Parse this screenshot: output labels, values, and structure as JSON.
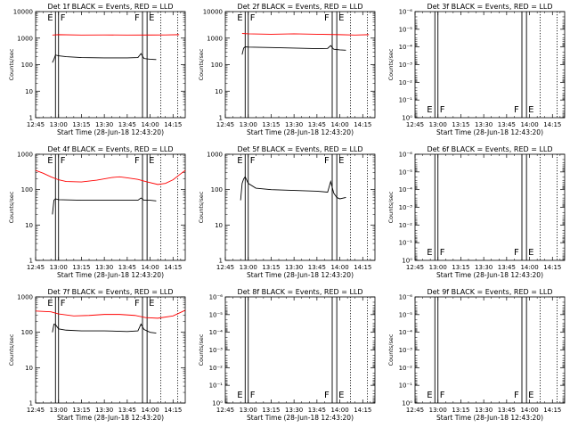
{
  "chart_data": {
    "type": "line",
    "x_tick_labels": [
      "12:45",
      "13:00",
      "13:15",
      "13:30",
      "13:45",
      "14:00",
      "14:15"
    ],
    "x_range": [
      "12:45",
      "14:23"
    ],
    "xlabel": "Start Time (28-Jun-18 12:43:20)",
    "ylabel": "Counts/sec",
    "y_scale": "log",
    "colors": {
      "events": "#000000",
      "lld": "#ff0000",
      "axes": "#000000"
    },
    "solid_markers": [
      "12:58",
      "13:00",
      "13:55",
      "13:58"
    ],
    "dotted_markers": [
      "14:07",
      "14:18"
    ],
    "marker_labels": [
      "E",
      "F",
      "F",
      "E"
    ],
    "panels": [
      {
        "title": "Det 1f BLACK = Events, RED = LLD",
        "ylim": [
          1,
          10000
        ],
        "y_tick_labels": [
          "1",
          "10",
          "100",
          "1000",
          "10000"
        ],
        "series": [
          {
            "name": "Events",
            "color": "#000000",
            "points": [
              [
                "12:56",
                120
              ],
              [
                "12:57",
                160
              ],
              [
                "12:58",
                230
              ],
              [
                "13:00",
                215
              ],
              [
                "13:05",
                200
              ],
              [
                "13:15",
                185
              ],
              [
                "13:30",
                180
              ],
              [
                "13:45",
                180
              ],
              [
                "13:52",
                185
              ],
              [
                "13:54",
                260
              ],
              [
                "13:56",
                170
              ],
              [
                "14:00",
                160
              ],
              [
                "14:04",
                155
              ]
            ]
          },
          {
            "name": "LLD",
            "color": "#ff0000",
            "points": [
              [
                "12:56",
                1300
              ],
              [
                "13:00",
                1350
              ],
              [
                "13:15",
                1300
              ],
              [
                "13:30",
                1320
              ],
              [
                "13:45",
                1300
              ],
              [
                "14:00",
                1310
              ],
              [
                "14:10",
                1320
              ],
              [
                "14:19",
                1350
              ]
            ]
          }
        ]
      },
      {
        "title": "Det 2f BLACK = Events, RED = LLD",
        "ylim": [
          1,
          10000
        ],
        "y_tick_labels": [
          "1",
          "10",
          "100",
          "1000",
          "10000"
        ],
        "series": [
          {
            "name": "Events",
            "color": "#000000",
            "points": [
              [
                "12:56",
                240
              ],
              [
                "12:57",
                420
              ],
              [
                "12:58",
                470
              ],
              [
                "13:00",
                460
              ],
              [
                "13:15",
                440
              ],
              [
                "13:30",
                420
              ],
              [
                "13:45",
                400
              ],
              [
                "13:52",
                410
              ],
              [
                "13:54",
                520
              ],
              [
                "13:56",
                380
              ],
              [
                "14:00",
                360
              ],
              [
                "14:04",
                350
              ]
            ]
          },
          {
            "name": "LLD",
            "color": "#ff0000",
            "points": [
              [
                "12:56",
                1500
              ],
              [
                "13:00",
                1450
              ],
              [
                "13:15",
                1400
              ],
              [
                "13:30",
                1450
              ],
              [
                "13:45",
                1400
              ],
              [
                "14:00",
                1350
              ],
              [
                "14:10",
                1300
              ],
              [
                "14:19",
                1350
              ]
            ]
          }
        ]
      },
      {
        "title": "Det 3f BLACK = Events, RED = LLD",
        "ylim": [
          1,
          1e-06
        ],
        "y_tick_labels": [
          "10⁻⁶",
          "10⁻⁵",
          "10⁻⁴",
          "10⁻³",
          "10⁻²",
          "10⁻¹",
          "10⁰"
        ],
        "series": []
      },
      {
        "title": "Det 4f BLACK = Events, RED = LLD",
        "ylim": [
          1,
          1000
        ],
        "y_tick_labels": [
          "1",
          "10",
          "100",
          "1000"
        ],
        "series": [
          {
            "name": "Events",
            "color": "#000000",
            "points": [
              [
                "12:56",
                20
              ],
              [
                "12:57",
                50
              ],
              [
                "12:58",
                55
              ],
              [
                "13:00",
                52
              ],
              [
                "13:15",
                50
              ],
              [
                "13:30",
                50
              ],
              [
                "13:45",
                50
              ],
              [
                "13:52",
                50
              ],
              [
                "13:54",
                58
              ],
              [
                "13:56",
                50
              ],
              [
                "14:00",
                50
              ],
              [
                "14:04",
                48
              ]
            ]
          },
          {
            "name": "LLD",
            "color": "#ff0000",
            "points": [
              [
                "12:45",
                350
              ],
              [
                "12:50",
                290
              ],
              [
                "12:55",
                230
              ],
              [
                "13:00",
                190
              ],
              [
                "13:05",
                170
              ],
              [
                "13:15",
                165
              ],
              [
                "13:25",
                185
              ],
              [
                "13:35",
                220
              ],
              [
                "13:40",
                230
              ],
              [
                "13:45",
                215
              ],
              [
                "13:52",
                195
              ],
              [
                "13:57",
                170
              ],
              [
                "14:05",
                140
              ],
              [
                "14:10",
                150
              ],
              [
                "14:15",
                190
              ],
              [
                "14:20",
                280
              ],
              [
                "14:23",
                350
              ]
            ]
          }
        ]
      },
      {
        "title": "Det 5f BLACK = Events, RED = LLD",
        "ylim": [
          1,
          1000
        ],
        "y_tick_labels": [
          "1",
          "10",
          "100",
          "1000"
        ],
        "series": [
          {
            "name": "Events",
            "color": "#000000",
            "points": [
              [
                "12:55",
                50
              ],
              [
                "12:56",
                150
              ],
              [
                "12:57",
                200
              ],
              [
                "12:58",
                230
              ],
              [
                "13:00",
                150
              ],
              [
                "13:05",
                110
              ],
              [
                "13:15",
                100
              ],
              [
                "13:30",
                95
              ],
              [
                "13:45",
                90
              ],
              [
                "13:52",
                85
              ],
              [
                "13:54",
                170
              ],
              [
                "13:56",
                80
              ],
              [
                "13:58",
                60
              ],
              [
                "14:00",
                55
              ],
              [
                "14:04",
                60
              ]
            ]
          }
        ]
      },
      {
        "title": "Det 6f BLACK = Events, RED = LLD",
        "ylim": [
          1,
          1e-06
        ],
        "y_tick_labels": [
          "10⁻⁶",
          "10⁻⁵",
          "10⁻⁴",
          "10⁻³",
          "10⁻²",
          "10⁻¹",
          "10⁰"
        ],
        "series": []
      },
      {
        "title": "Det 7f BLACK = Events, RED = LLD",
        "ylim": [
          1,
          1000
        ],
        "y_tick_labels": [
          "1",
          "10",
          "100",
          "1000"
        ],
        "series": [
          {
            "name": "Events",
            "color": "#000000",
            "points": [
              [
                "12:56",
                100
              ],
              [
                "12:57",
                170
              ],
              [
                "12:58",
                165
              ],
              [
                "13:00",
                125
              ],
              [
                "13:05",
                115
              ],
              [
                "13:15",
                110
              ],
              [
                "13:30",
                110
              ],
              [
                "13:45",
                105
              ],
              [
                "13:52",
                110
              ],
              [
                "13:54",
                170
              ],
              [
                "13:56",
                120
              ],
              [
                "14:00",
                100
              ],
              [
                "14:04",
                95
              ]
            ]
          },
          {
            "name": "LLD",
            "color": "#ff0000",
            "points": [
              [
                "12:45",
                400
              ],
              [
                "12:55",
                380
              ],
              [
                "13:00",
                330
              ],
              [
                "13:10",
                290
              ],
              [
                "13:20",
                300
              ],
              [
                "13:30",
                320
              ],
              [
                "13:40",
                320
              ],
              [
                "13:50",
                300
              ],
              [
                "13:57",
                260
              ],
              [
                "14:05",
                250
              ],
              [
                "14:15",
                290
              ],
              [
                "14:23",
                420
              ]
            ]
          }
        ]
      },
      {
        "title": "Det 8f BLACK = Events, RED = LLD",
        "ylim": [
          1,
          1e-06
        ],
        "y_tick_labels": [
          "10⁻⁶",
          "10⁻⁵",
          "10⁻⁴",
          "10⁻³",
          "10⁻²",
          "10⁻¹",
          "10⁰"
        ],
        "series": []
      },
      {
        "title": "Det 9f BLACK = Events, RED = LLD",
        "ylim": [
          1,
          1e-06
        ],
        "y_tick_labels": [
          "10⁻⁶",
          "10⁻⁵",
          "10⁻⁴",
          "10⁻³",
          "10⁻²",
          "10⁻¹",
          "10⁰"
        ],
        "series": []
      }
    ]
  }
}
